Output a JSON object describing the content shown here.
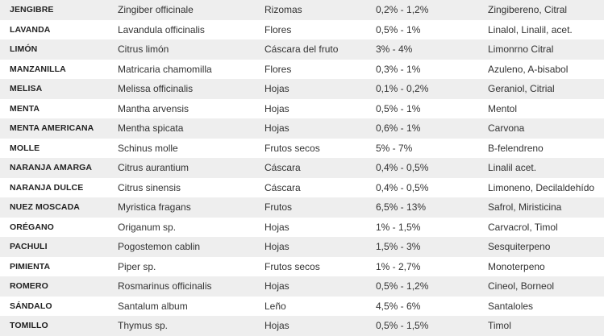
{
  "table": {
    "rows": [
      [
        "JENGIBRE",
        "Zingiber officinale",
        "Rizomas",
        "0,2% - 1,2%",
        "Zingibereno, Citral"
      ],
      [
        "LAVANDA",
        "Lavandula officinalis",
        "Flores",
        "0,5% - 1%",
        "Linalol, Linalil, acet."
      ],
      [
        "LIMÓN",
        "Citrus limón",
        "Cáscara del fruto",
        "3% - 4%",
        "Limonrno Citral"
      ],
      [
        "MANZANILLA",
        "Matricaria chamomilla",
        "Flores",
        "0,3% - 1%",
        "Azuleno, A-bisabol"
      ],
      [
        "MELISA",
        "Melissa officinalis",
        "Hojas",
        "0,1% - 0,2%",
        "Geraniol, Citrial"
      ],
      [
        "MENTA",
        "Mantha arvensis",
        "Hojas",
        "0,5% - 1%",
        "Mentol"
      ],
      [
        "MENTA AMERICANA",
        "Mentha spicata",
        "Hojas",
        "0,6% - 1%",
        "Carvona"
      ],
      [
        "MOLLE",
        "Schinus molle",
        "Frutos secos",
        "5% - 7%",
        "B-felendreno"
      ],
      [
        "NARANJA AMARGA",
        "Citrus aurantium",
        "Cáscara",
        "0,4% - 0,5%",
        "Linalil acet."
      ],
      [
        "NARANJA DULCE",
        "Citrus sinensis",
        "Cáscara",
        "0,4% - 0,5%",
        "Limoneno, Decilaldehído"
      ],
      [
        "NUEZ MOSCADA",
        "Myristica fragans",
        "Frutos",
        "6,5% - 13%",
        "Safrol, Miristicina"
      ],
      [
        "ORÉGANO",
        "Origanum sp.",
        "Hojas",
        "1% - 1,5%",
        "Carvacrol, Timol"
      ],
      [
        "PACHULI",
        "Pogostemon cablin",
        "Hojas",
        "1,5% - 3%",
        "Sesquiterpeno"
      ],
      [
        "PIMIENTA",
        "Piper sp.",
        "Frutos secos",
        "1% - 2,7%",
        "Monoterpeno"
      ],
      [
        "ROMERO",
        "Rosmarinus officinalis",
        "Hojas",
        "0,5% - 1,2%",
        "Cineol, Borneol"
      ],
      [
        "SÁNDALO",
        "Santalum album",
        "Leño",
        "4,5% - 6%",
        "Santaloles"
      ],
      [
        "TOMILLO",
        "Thymus sp.",
        "Hojas",
        "0,5% - 1,5%",
        "Timol"
      ]
    ]
  }
}
